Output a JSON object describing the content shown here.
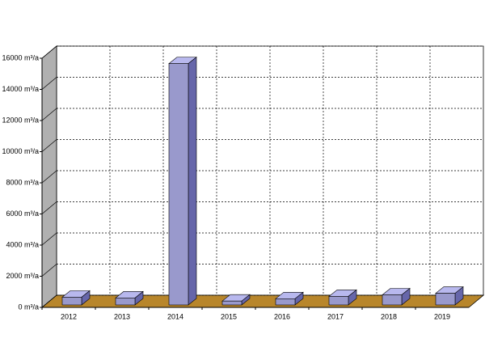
{
  "chart_data": {
    "type": "bar3d",
    "categories": [
      "2012",
      "2013",
      "2014",
      "2015",
      "2016",
      "2017",
      "2018",
      "2019"
    ],
    "values": [
      500,
      450,
      15500,
      250,
      400,
      550,
      650,
      750
    ],
    "color": "#9999cc",
    "ylim": [
      0,
      16000
    ],
    "yticks": [
      {
        "value": 0,
        "label": "0 m³/a"
      },
      {
        "value": 2000,
        "label": "2000 m³/a"
      },
      {
        "value": 4000,
        "label": "4000 m³/a"
      },
      {
        "value": 6000,
        "label": "6000 m³/a"
      },
      {
        "value": 8000,
        "label": "8000 m³/a"
      },
      {
        "value": 10000,
        "label": "10000 m³/a"
      },
      {
        "value": 12000,
        "label": "12000 m³/a"
      },
      {
        "value": 14000,
        "label": "14000 m³/a"
      },
      {
        "value": 16000,
        "label": "16000 m³/a"
      }
    ],
    "grid": true
  }
}
